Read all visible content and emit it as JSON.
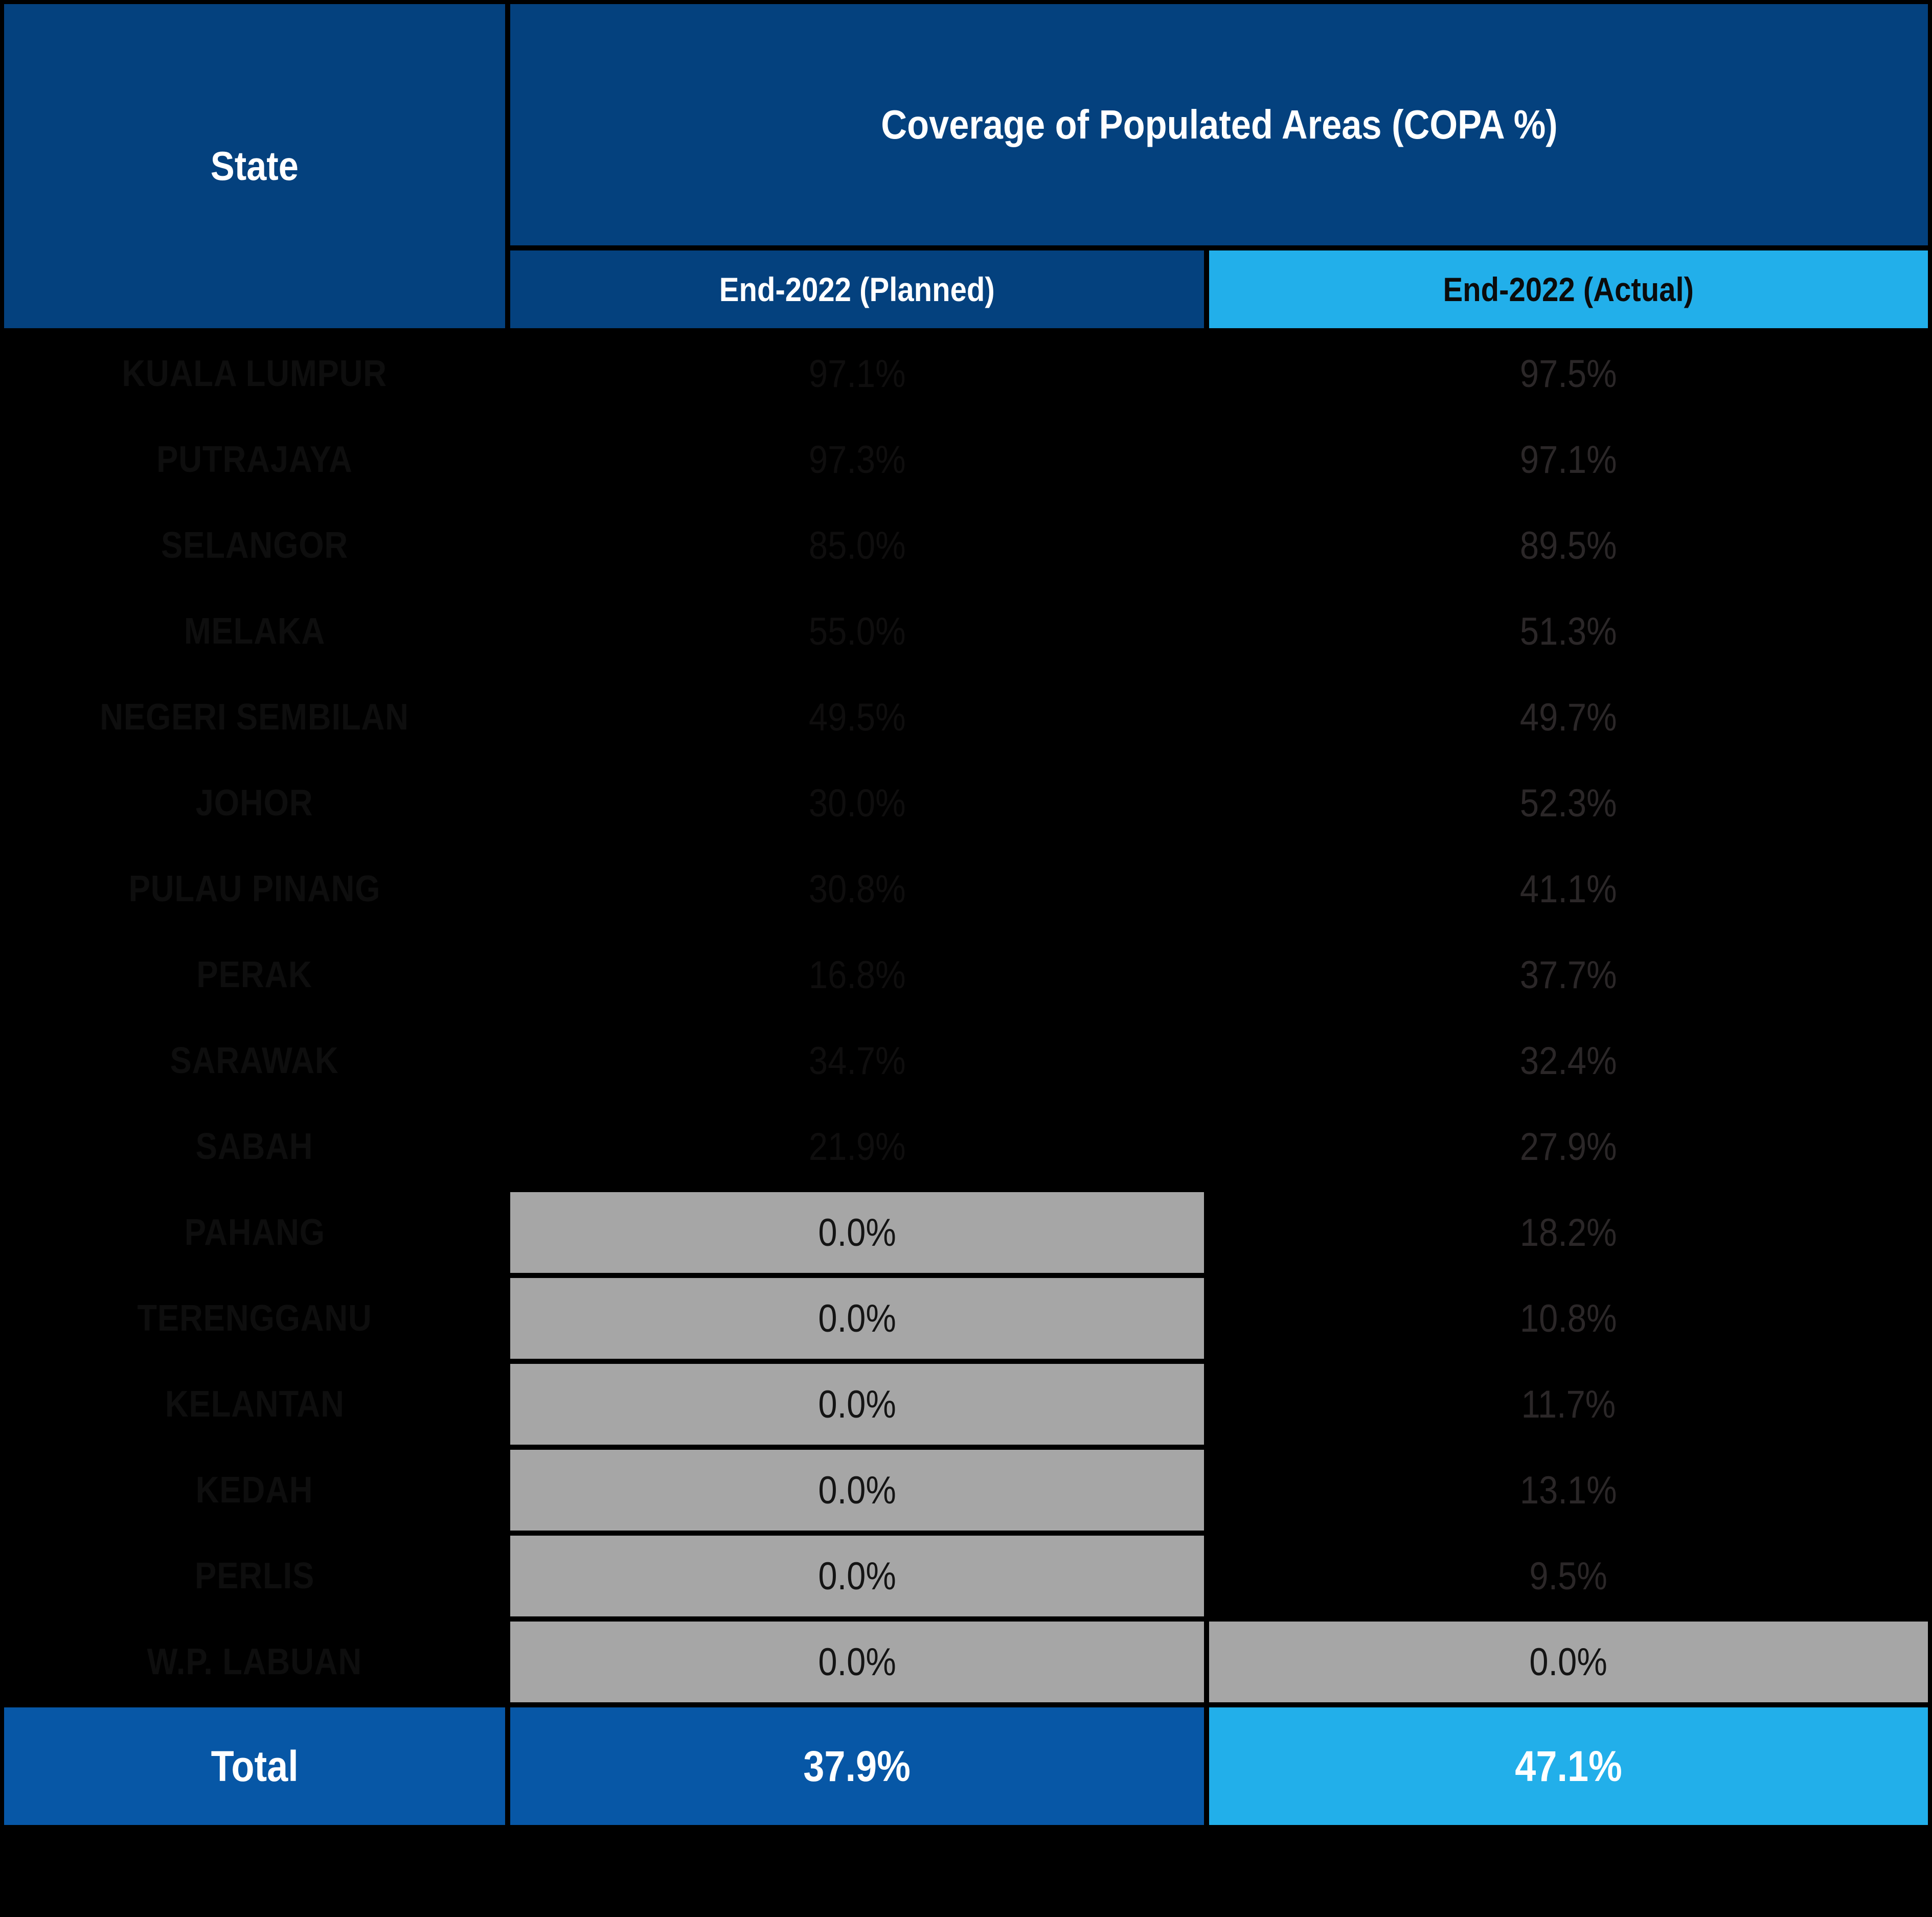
{
  "table": {
    "header": {
      "state_label": "State",
      "copa_label": "Coverage of Populated Areas (COPA %)",
      "planned_label": "End-2022 (Planned)",
      "actual_label": "End-2022 (Actual)"
    },
    "rows": [
      {
        "state": "KUALA LUMPUR",
        "planned": "97.1%",
        "actual": "97.5%",
        "planned_gray": false,
        "actual_gray": false
      },
      {
        "state": "PUTRAJAYA",
        "planned": "97.3%",
        "actual": "97.1%",
        "planned_gray": false,
        "actual_gray": false
      },
      {
        "state": "SELANGOR",
        "planned": "85.0%",
        "actual": "89.5%",
        "planned_gray": false,
        "actual_gray": false
      },
      {
        "state": "MELAKA",
        "planned": "55.0%",
        "actual": "51.3%",
        "planned_gray": false,
        "actual_gray": false
      },
      {
        "state": "NEGERI SEMBILAN",
        "planned": "49.5%",
        "actual": "49.7%",
        "planned_gray": false,
        "actual_gray": false
      },
      {
        "state": "JOHOR",
        "planned": "30.0%",
        "actual": "52.3%",
        "planned_gray": false,
        "actual_gray": false
      },
      {
        "state": "PULAU PINANG",
        "planned": "30.8%",
        "actual": "41.1%",
        "planned_gray": false,
        "actual_gray": false
      },
      {
        "state": "PERAK",
        "planned": "16.8%",
        "actual": "37.7%",
        "planned_gray": false,
        "actual_gray": false
      },
      {
        "state": "SARAWAK",
        "planned": "34.7%",
        "actual": "32.4%",
        "planned_gray": false,
        "actual_gray": false
      },
      {
        "state": "SABAH",
        "planned": "21.9%",
        "actual": "27.9%",
        "planned_gray": false,
        "actual_gray": false
      },
      {
        "state": "PAHANG",
        "planned": "0.0%",
        "actual": "18.2%",
        "planned_gray": true,
        "actual_gray": false
      },
      {
        "state": "TERENGGANU",
        "planned": "0.0%",
        "actual": "10.8%",
        "planned_gray": true,
        "actual_gray": false
      },
      {
        "state": "KELANTAN",
        "planned": "0.0%",
        "actual": "11.7%",
        "planned_gray": true,
        "actual_gray": false
      },
      {
        "state": "KEDAH",
        "planned": "0.0%",
        "actual": "13.1%",
        "planned_gray": true,
        "actual_gray": false
      },
      {
        "state": "PERLIS",
        "planned": "0.0%",
        "actual": "9.5%",
        "planned_gray": true,
        "actual_gray": false
      },
      {
        "state": "W.P. LABUAN",
        "planned": "0.0%",
        "actual": "0.0%",
        "planned_gray": true,
        "actual_gray": true
      }
    ],
    "total": {
      "label": "Total",
      "planned": "37.9%",
      "actual": "47.1%"
    }
  },
  "colors": {
    "background": "#000000",
    "header_navy": "#04417E",
    "accent_cyan": "#22AFEA",
    "total_blue": "#0757A6",
    "muted_gray": "#A6A6A6",
    "hidden_text": "#0E0E0E",
    "actual_value_text": "#2B2728"
  },
  "chart_data": {
    "type": "table",
    "title": "Coverage of Populated Areas (COPA %)",
    "columns": [
      "State",
      "End-2022 (Planned)",
      "End-2022 (Actual)"
    ],
    "categories": [
      "KUALA LUMPUR",
      "PUTRAJAYA",
      "SELANGOR",
      "MELAKA",
      "NEGERI SEMBILAN",
      "JOHOR",
      "PULAU PINANG",
      "PERAK",
      "SARAWAK",
      "SABAH",
      "PAHANG",
      "TERENGGANU",
      "KELANTAN",
      "KEDAH",
      "PERLIS",
      "W.P. LABUAN"
    ],
    "series": [
      {
        "name": "End-2022 (Planned)",
        "values": [
          97.1,
          97.3,
          85.0,
          55.0,
          49.5,
          30.0,
          30.8,
          16.8,
          34.7,
          21.9,
          0.0,
          0.0,
          0.0,
          0.0,
          0.0,
          0.0
        ]
      },
      {
        "name": "End-2022 (Actual)",
        "values": [
          97.5,
          97.1,
          89.5,
          51.3,
          49.7,
          52.3,
          41.1,
          37.7,
          32.4,
          27.9,
          18.2,
          10.8,
          11.7,
          13.1,
          9.5,
          0.0
        ]
      }
    ],
    "total": {
      "label": "Total",
      "planned": 37.9,
      "actual": 47.1
    },
    "notes": "Rows with 0.0% planned are highlighted gray; W.P. LABUAN actual also gray. State names and planned values for rows 1-10 rendered near-black on black background."
  }
}
